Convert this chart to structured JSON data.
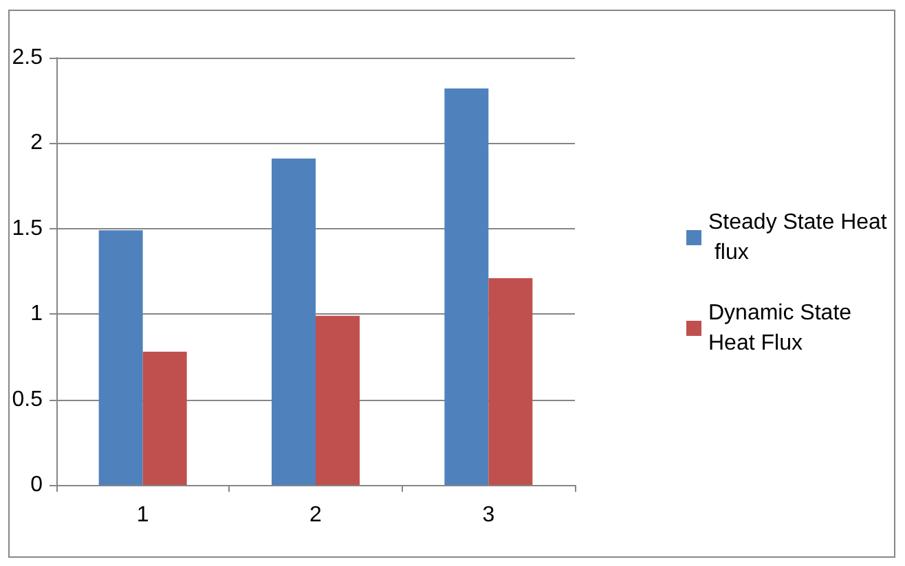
{
  "chart_data": {
    "type": "bar",
    "categories": [
      "1",
      "2",
      "3"
    ],
    "series": [
      {
        "name": "Steady State Heat flux",
        "color": "#4f81bd",
        "values": [
          1.49,
          1.91,
          2.32
        ]
      },
      {
        "name": "Dynamic State Heat Flux",
        "color": "#c0504d",
        "values": [
          0.78,
          0.99,
          1.21
        ]
      }
    ],
    "ylim": [
      0,
      2.5
    ],
    "yticks": [
      0,
      0.5,
      1,
      1.5,
      2,
      2.5
    ],
    "grid": "y",
    "legend": "right"
  }
}
